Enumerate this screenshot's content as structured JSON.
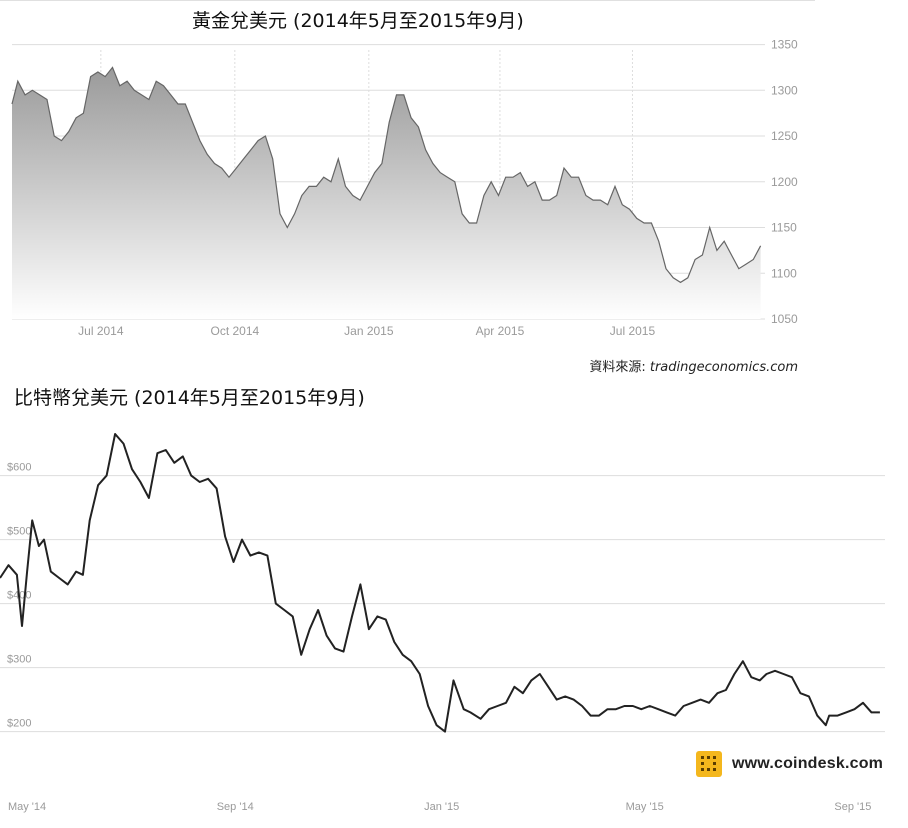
{
  "chart_data": [
    {
      "type": "area",
      "title": "黃金兌美元 (2014年5月至2015年9月)",
      "source_label": "資料來源:",
      "source": "tradingeconomics.com",
      "x_tick_labels": [
        "Jul 2014",
        "Oct 2014",
        "Jan 2015",
        "Apr 2015",
        "Jul 2015"
      ],
      "x_tick_dates": [
        "2014-07-01",
        "2014-10-01",
        "2015-01-01",
        "2015-04-01",
        "2015-07-01"
      ],
      "y_tick_labels": [
        "1350",
        "1300",
        "1250",
        "1200",
        "1150",
        "1100",
        "1050"
      ],
      "y_ticks": [
        1350,
        1300,
        1250,
        1200,
        1150,
        1100,
        1050
      ],
      "ylim": [
        1050,
        1355
      ],
      "xlim": [
        "2014-05-01",
        "2015-09-30"
      ],
      "grid": true,
      "series": [
        {
          "x": [
            "2014-05-01",
            "2014-05-05",
            "2014-05-10",
            "2014-05-15",
            "2014-05-20",
            "2014-05-25",
            "2014-05-30",
            "2014-06-04",
            "2014-06-09",
            "2014-06-14",
            "2014-06-19",
            "2014-06-24",
            "2014-06-29",
            "2014-07-04",
            "2014-07-09",
            "2014-07-14",
            "2014-07-19",
            "2014-07-24",
            "2014-07-29",
            "2014-08-03",
            "2014-08-08",
            "2014-08-13",
            "2014-08-18",
            "2014-08-23",
            "2014-08-28",
            "2014-09-02",
            "2014-09-07",
            "2014-09-12",
            "2014-09-17",
            "2014-09-22",
            "2014-09-27",
            "2014-10-02",
            "2014-10-07",
            "2014-10-12",
            "2014-10-17",
            "2014-10-22",
            "2014-10-27",
            "2014-11-01",
            "2014-11-06",
            "2014-11-11",
            "2014-11-16",
            "2014-11-21",
            "2014-11-26",
            "2014-12-01",
            "2014-12-06",
            "2014-12-11",
            "2014-12-16",
            "2014-12-21",
            "2014-12-26",
            "2014-12-31",
            "2015-01-05",
            "2015-01-10",
            "2015-01-15",
            "2015-01-20",
            "2015-01-25",
            "2015-01-30",
            "2015-02-04",
            "2015-02-09",
            "2015-02-14",
            "2015-02-19",
            "2015-02-24",
            "2015-03-01",
            "2015-03-06",
            "2015-03-11",
            "2015-03-16",
            "2015-03-21",
            "2015-03-26",
            "2015-03-31",
            "2015-04-05",
            "2015-04-10",
            "2015-04-15",
            "2015-04-20",
            "2015-04-25",
            "2015-04-30",
            "2015-05-05",
            "2015-05-10",
            "2015-05-15",
            "2015-05-20",
            "2015-05-25",
            "2015-05-30",
            "2015-06-04",
            "2015-06-09",
            "2015-06-14",
            "2015-06-19",
            "2015-06-24",
            "2015-06-29",
            "2015-07-04",
            "2015-07-09",
            "2015-07-14",
            "2015-07-19",
            "2015-07-24",
            "2015-07-29",
            "2015-08-03",
            "2015-08-08",
            "2015-08-13",
            "2015-08-18",
            "2015-08-23",
            "2015-08-28",
            "2015-09-02",
            "2015-09-07",
            "2015-09-12",
            "2015-09-17",
            "2015-09-22",
            "2015-09-27"
          ],
          "values": [
            1285,
            1310,
            1295,
            1300,
            1295,
            1290,
            1250,
            1245,
            1255,
            1270,
            1275,
            1315,
            1320,
            1315,
            1325,
            1305,
            1310,
            1300,
            1295,
            1290,
            1310,
            1305,
            1295,
            1285,
            1285,
            1265,
            1245,
            1230,
            1220,
            1215,
            1205,
            1215,
            1225,
            1235,
            1245,
            1250,
            1225,
            1165,
            1150,
            1165,
            1185,
            1195,
            1195,
            1205,
            1200,
            1225,
            1195,
            1185,
            1180,
            1195,
            1210,
            1220,
            1265,
            1295,
            1295,
            1270,
            1260,
            1235,
            1220,
            1210,
            1205,
            1200,
            1165,
            1155,
            1155,
            1185,
            1200,
            1185,
            1205,
            1205,
            1210,
            1195,
            1200,
            1180,
            1180,
            1185,
            1215,
            1205,
            1205,
            1185,
            1180,
            1180,
            1175,
            1195,
            1175,
            1170,
            1160,
            1155,
            1155,
            1135,
            1105,
            1095,
            1090,
            1095,
            1115,
            1120,
            1150,
            1125,
            1135,
            1120,
            1105,
            1110,
            1115,
            1130
          ]
        }
      ]
    },
    {
      "type": "line",
      "title": "比特幣兌美元 (2014年5月至2015年9月)",
      "watermark": "www.coindesk.com",
      "x_tick_labels": [
        "May '14",
        "Sep '14",
        "Jan '15",
        "May '15",
        "Sep '15"
      ],
      "x_tick_dates": [
        "2014-05-01",
        "2014-09-01",
        "2015-01-01",
        "2015-05-01",
        "2015-09-01"
      ],
      "y_tick_labels": [
        "$600",
        "$500",
        "$400",
        "$300",
        "$200"
      ],
      "y_ticks": [
        600,
        500,
        400,
        300,
        200
      ],
      "ylim": [
        190,
        690
      ],
      "xlim": [
        "2014-04-15",
        "2015-09-20"
      ],
      "grid": true,
      "series": [
        {
          "x": [
            "2014-04-15",
            "2014-04-20",
            "2014-04-25",
            "2014-04-28",
            "2014-05-01",
            "2014-05-04",
            "2014-05-08",
            "2014-05-11",
            "2014-05-15",
            "2014-05-20",
            "2014-05-25",
            "2014-05-30",
            "2014-06-03",
            "2014-06-07",
            "2014-06-12",
            "2014-06-17",
            "2014-06-22",
            "2014-06-27",
            "2014-07-02",
            "2014-07-07",
            "2014-07-12",
            "2014-07-17",
            "2014-07-22",
            "2014-07-27",
            "2014-08-01",
            "2014-08-06",
            "2014-08-11",
            "2014-08-16",
            "2014-08-21",
            "2014-08-26",
            "2014-08-31",
            "2014-09-05",
            "2014-09-10",
            "2014-09-15",
            "2014-09-20",
            "2014-09-25",
            "2014-09-30",
            "2014-10-05",
            "2014-10-10",
            "2014-10-15",
            "2014-10-20",
            "2014-10-25",
            "2014-10-30",
            "2014-11-04",
            "2014-11-09",
            "2014-11-14",
            "2014-11-19",
            "2014-11-24",
            "2014-11-29",
            "2014-12-04",
            "2014-12-09",
            "2014-12-14",
            "2014-12-19",
            "2014-12-24",
            "2014-12-29",
            "2015-01-03",
            "2015-01-08",
            "2015-01-14",
            "2015-01-18",
            "2015-01-24",
            "2015-01-29",
            "2015-02-03",
            "2015-02-08",
            "2015-02-13",
            "2015-02-18",
            "2015-02-23",
            "2015-02-28",
            "2015-03-05",
            "2015-03-10",
            "2015-03-15",
            "2015-03-20",
            "2015-03-25",
            "2015-03-30",
            "2015-04-04",
            "2015-04-09",
            "2015-04-14",
            "2015-04-19",
            "2015-04-24",
            "2015-04-29",
            "2015-05-04",
            "2015-05-09",
            "2015-05-14",
            "2015-05-19",
            "2015-05-24",
            "2015-05-29",
            "2015-06-03",
            "2015-06-08",
            "2015-06-13",
            "2015-06-18",
            "2015-06-23",
            "2015-06-28",
            "2015-07-03",
            "2015-07-08",
            "2015-07-12",
            "2015-07-17",
            "2015-07-22",
            "2015-07-27",
            "2015-08-01",
            "2015-08-06",
            "2015-08-11",
            "2015-08-16",
            "2015-08-18",
            "2015-08-23",
            "2015-08-28",
            "2015-09-02",
            "2015-09-07",
            "2015-09-12",
            "2015-09-17"
          ],
          "values": [
            440,
            460,
            445,
            365,
            450,
            530,
            490,
            500,
            450,
            440,
            430,
            450,
            445,
            530,
            585,
            600,
            665,
            650,
            610,
            590,
            565,
            635,
            640,
            620,
            630,
            600,
            590,
            595,
            580,
            505,
            465,
            500,
            475,
            480,
            475,
            400,
            390,
            380,
            320,
            360,
            390,
            350,
            330,
            325,
            380,
            430,
            360,
            380,
            375,
            340,
            320,
            310,
            290,
            240,
            210,
            200,
            280,
            235,
            230,
            220,
            235,
            240,
            245,
            270,
            260,
            280,
            290,
            270,
            250,
            255,
            250,
            240,
            225,
            225,
            235,
            235,
            240,
            240,
            235,
            240,
            235,
            230,
            225,
            240,
            245,
            250,
            245,
            260,
            265,
            290,
            310,
            285,
            280,
            290,
            295,
            290,
            285,
            260,
            255,
            225,
            210,
            225,
            225,
            230,
            235,
            245,
            230,
            230
          ]
        }
      ]
    }
  ],
  "colors": {
    "gold_line": "#666666",
    "gold_fill_top": "#9a9a9a",
    "gold_fill_bottom": "#ffffff",
    "btc_line": "#222222",
    "grid": "#dddddd",
    "tick_text": "#9a9a9a",
    "coindesk_yellow": "#f4b71d"
  }
}
